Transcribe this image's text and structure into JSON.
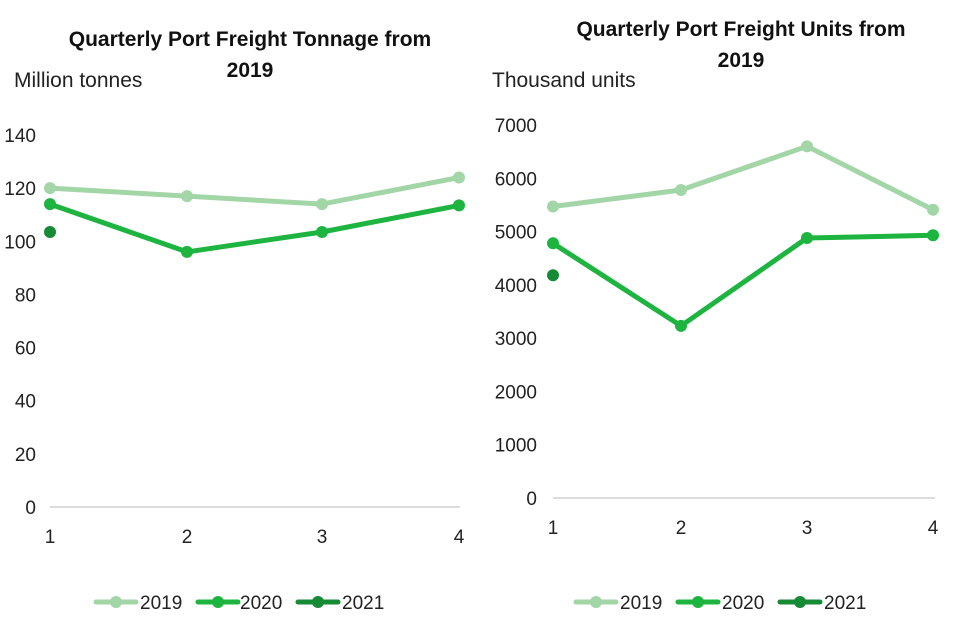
{
  "chart_data": [
    {
      "type": "line",
      "title_lines": [
        "Quarterly Port Freight Tonnage from",
        "2019"
      ],
      "ylabel": "Million tonnes",
      "xlabel": "",
      "categories": [
        "1",
        "2",
        "3",
        "4"
      ],
      "ylim": [
        0,
        140
      ],
      "yticks": [
        "0",
        "20",
        "40",
        "60",
        "80",
        "100",
        "120",
        "140"
      ],
      "grid": false,
      "legend_position": "bottom",
      "series": [
        {
          "name": "2019",
          "color": "#a3d6a7",
          "values": [
            120,
            117,
            114,
            124
          ]
        },
        {
          "name": "2020",
          "color": "#1db440",
          "values": [
            114,
            96,
            103.5,
            113.5
          ]
        },
        {
          "name": "2021",
          "color": "#178a36",
          "values": [
            103.5,
            null,
            null,
            null
          ]
        }
      ]
    },
    {
      "type": "line",
      "title_lines": [
        "Quarterly Port Freight Units from",
        "2019"
      ],
      "ylabel": "Thousand units",
      "xlabel": "",
      "categories": [
        "1",
        "2",
        "3",
        "4"
      ],
      "ylim": [
        0,
        7000
      ],
      "yticks": [
        "0",
        "1000",
        "2000",
        "3000",
        "4000",
        "5000",
        "6000",
        "7000"
      ],
      "grid": false,
      "legend_position": "bottom",
      "series": [
        {
          "name": "2019",
          "color": "#a3d6a7",
          "values": [
            5470,
            5780,
            6600,
            5410
          ]
        },
        {
          "name": "2020",
          "color": "#1db440",
          "values": [
            4780,
            3230,
            4880,
            4930
          ]
        },
        {
          "name": "2021",
          "color": "#178a36",
          "values": [
            4180,
            null,
            null,
            null
          ]
        }
      ]
    }
  ]
}
